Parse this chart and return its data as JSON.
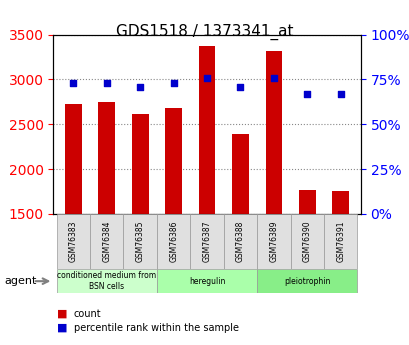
{
  "title": "GDS1518 / 1373341_at",
  "samples": [
    "GSM76383",
    "GSM76384",
    "GSM76385",
    "GSM76386",
    "GSM76387",
    "GSM76388",
    "GSM76389",
    "GSM76390",
    "GSM76391"
  ],
  "counts": [
    2720,
    2750,
    2610,
    2680,
    3370,
    2390,
    3320,
    1770,
    1760
  ],
  "percentiles": [
    73,
    73,
    71,
    73,
    76,
    71,
    76,
    67,
    67
  ],
  "ylim_left": [
    1500,
    3500
  ],
  "ylim_right": [
    0,
    100
  ],
  "yticks_left": [
    1500,
    2000,
    2500,
    3000,
    3500
  ],
  "yticks_right": [
    0,
    25,
    50,
    75,
    100
  ],
  "bar_color": "#cc0000",
  "dot_color": "#0000cc",
  "groups": [
    {
      "label": "conditioned medium from\nBSN cells",
      "start": 0,
      "end": 3,
      "color": "#ccffcc"
    },
    {
      "label": "heregulin",
      "start": 3,
      "end": 6,
      "color": "#aaffaa"
    },
    {
      "label": "pleiotrophin",
      "start": 6,
      "end": 9,
      "color": "#88ee88"
    }
  ],
  "agent_label": "agent",
  "legend_count_label": "count",
  "legend_pct_label": "percentile rank within the sample",
  "bar_width": 0.5,
  "count_base": 1500,
  "grid_color": "#888888",
  "bg_color": "#f0f0f0",
  "plot_bg": "#ffffff"
}
